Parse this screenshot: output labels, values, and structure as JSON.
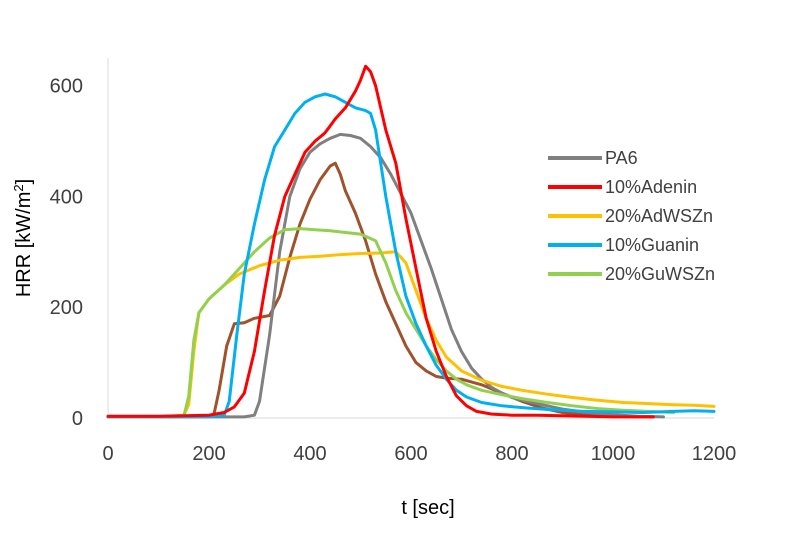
{
  "chart_data": {
    "type": "line",
    "title": "",
    "xlabel": "t [sec]",
    "ylabel_parts": {
      "main": "HRR [kW/m",
      "sup": "2",
      "end": "]"
    },
    "xlim": [
      0,
      1200
    ],
    "ylim": [
      0,
      650
    ],
    "x_ticks": [
      "0",
      "200",
      "400",
      "600",
      "800",
      "1000",
      "1200"
    ],
    "y_ticks": [
      "0",
      "200",
      "400",
      "600"
    ],
    "legend_position": "right",
    "grid": false,
    "series": [
      {
        "name": "PA6",
        "color": "#808080",
        "points": [
          [
            0,
            2
          ],
          [
            100,
            2
          ],
          [
            200,
            2
          ],
          [
            270,
            2
          ],
          [
            290,
            5
          ],
          [
            300,
            30
          ],
          [
            320,
            150
          ],
          [
            340,
            300
          ],
          [
            360,
            400
          ],
          [
            380,
            450
          ],
          [
            400,
            480
          ],
          [
            420,
            495
          ],
          [
            440,
            505
          ],
          [
            460,
            512
          ],
          [
            480,
            510
          ],
          [
            500,
            505
          ],
          [
            520,
            490
          ],
          [
            540,
            470
          ],
          [
            560,
            440
          ],
          [
            580,
            405
          ],
          [
            600,
            370
          ],
          [
            620,
            320
          ],
          [
            640,
            270
          ],
          [
            660,
            215
          ],
          [
            680,
            160
          ],
          [
            700,
            120
          ],
          [
            720,
            90
          ],
          [
            740,
            70
          ],
          [
            760,
            55
          ],
          [
            780,
            45
          ],
          [
            800,
            37
          ],
          [
            830,
            30
          ],
          [
            870,
            22
          ],
          [
            900,
            16
          ],
          [
            950,
            10
          ],
          [
            1000,
            6
          ],
          [
            1050,
            3
          ],
          [
            1100,
            2
          ]
        ]
      },
      {
        "name": "10%Adenin",
        "color": "#ff0000",
        "points": [
          [
            0,
            3
          ],
          [
            100,
            3
          ],
          [
            200,
            5
          ],
          [
            230,
            10
          ],
          [
            250,
            20
          ],
          [
            270,
            45
          ],
          [
            290,
            120
          ],
          [
            310,
            230
          ],
          [
            330,
            330
          ],
          [
            350,
            400
          ],
          [
            370,
            440
          ],
          [
            390,
            480
          ],
          [
            410,
            500
          ],
          [
            430,
            515
          ],
          [
            450,
            540
          ],
          [
            470,
            560
          ],
          [
            490,
            590
          ],
          [
            500,
            610
          ],
          [
            510,
            635
          ],
          [
            520,
            625
          ],
          [
            530,
            600
          ],
          [
            550,
            520
          ],
          [
            570,
            460
          ],
          [
            590,
            360
          ],
          [
            610,
            270
          ],
          [
            630,
            180
          ],
          [
            650,
            120
          ],
          [
            670,
            75
          ],
          [
            690,
            40
          ],
          [
            710,
            22
          ],
          [
            730,
            12
          ],
          [
            760,
            7
          ],
          [
            800,
            5
          ],
          [
            850,
            5
          ],
          [
            900,
            4
          ],
          [
            950,
            3
          ],
          [
            1000,
            2
          ],
          [
            1080,
            2
          ]
        ]
      },
      {
        "name": "20%AdWSZn",
        "color": "#ffc000",
        "points": [
          [
            0,
            2
          ],
          [
            100,
            2
          ],
          [
            150,
            5
          ],
          [
            160,
            25
          ],
          [
            170,
            120
          ],
          [
            180,
            190
          ],
          [
            200,
            215
          ],
          [
            230,
            240
          ],
          [
            260,
            260
          ],
          [
            300,
            275
          ],
          [
            340,
            285
          ],
          [
            380,
            290
          ],
          [
            420,
            292
          ],
          [
            460,
            295
          ],
          [
            500,
            297
          ],
          [
            540,
            298
          ],
          [
            570,
            300
          ],
          [
            590,
            280
          ],
          [
            610,
            230
          ],
          [
            630,
            180
          ],
          [
            650,
            140
          ],
          [
            670,
            110
          ],
          [
            700,
            85
          ],
          [
            740,
            68
          ],
          [
            780,
            57
          ],
          [
            820,
            50
          ],
          [
            870,
            43
          ],
          [
            920,
            37
          ],
          [
            970,
            32
          ],
          [
            1020,
            28
          ],
          [
            1070,
            26
          ],
          [
            1120,
            24
          ],
          [
            1160,
            23
          ],
          [
            1200,
            21
          ]
        ]
      },
      {
        "name": "10%Guanin",
        "color": "#00b0f0",
        "points": [
          [
            0,
            2
          ],
          [
            100,
            2
          ],
          [
            200,
            2
          ],
          [
            230,
            5
          ],
          [
            240,
            30
          ],
          [
            255,
            150
          ],
          [
            270,
            260
          ],
          [
            290,
            350
          ],
          [
            310,
            430
          ],
          [
            330,
            490
          ],
          [
            350,
            520
          ],
          [
            370,
            550
          ],
          [
            390,
            570
          ],
          [
            410,
            580
          ],
          [
            430,
            585
          ],
          [
            450,
            580
          ],
          [
            470,
            570
          ],
          [
            490,
            560
          ],
          [
            510,
            555
          ],
          [
            520,
            550
          ],
          [
            530,
            520
          ],
          [
            550,
            400
          ],
          [
            570,
            300
          ],
          [
            590,
            220
          ],
          [
            610,
            170
          ],
          [
            630,
            130
          ],
          [
            650,
            95
          ],
          [
            670,
            70
          ],
          [
            690,
            50
          ],
          [
            710,
            38
          ],
          [
            740,
            28
          ],
          [
            780,
            22
          ],
          [
            830,
            18
          ],
          [
            880,
            15
          ],
          [
            940,
            12
          ],
          [
            1000,
            11
          ],
          [
            1060,
            10
          ],
          [
            1120,
            12
          ],
          [
            1160,
            13
          ],
          [
            1200,
            12
          ]
        ]
      },
      {
        "name": "20%GuWSZn",
        "color": "#92d050",
        "points": [
          [
            0,
            2
          ],
          [
            100,
            2
          ],
          [
            150,
            3
          ],
          [
            160,
            40
          ],
          [
            170,
            140
          ],
          [
            180,
            190
          ],
          [
            200,
            215
          ],
          [
            230,
            240
          ],
          [
            260,
            270
          ],
          [
            290,
            300
          ],
          [
            320,
            325
          ],
          [
            350,
            340
          ],
          [
            380,
            342
          ],
          [
            410,
            340
          ],
          [
            440,
            338
          ],
          [
            470,
            335
          ],
          [
            500,
            332
          ],
          [
            530,
            320
          ],
          [
            550,
            280
          ],
          [
            570,
            230
          ],
          [
            590,
            190
          ],
          [
            610,
            160
          ],
          [
            630,
            130
          ],
          [
            650,
            105
          ],
          [
            670,
            85
          ],
          [
            690,
            70
          ],
          [
            710,
            60
          ],
          [
            740,
            50
          ],
          [
            780,
            42
          ],
          [
            820,
            35
          ],
          [
            870,
            28
          ],
          [
            920,
            22
          ],
          [
            970,
            17
          ],
          [
            1020,
            14
          ],
          [
            1070,
            12
          ],
          [
            1120,
            10
          ]
        ]
      },
      {
        "name": "",
        "color": "#a0522d",
        "points": [
          [
            0,
            2
          ],
          [
            100,
            2
          ],
          [
            200,
            3
          ],
          [
            210,
            8
          ],
          [
            220,
            50
          ],
          [
            235,
            130
          ],
          [
            250,
            170
          ],
          [
            270,
            172
          ],
          [
            290,
            180
          ],
          [
            320,
            185
          ],
          [
            340,
            220
          ],
          [
            360,
            290
          ],
          [
            380,
            350
          ],
          [
            400,
            395
          ],
          [
            420,
            430
          ],
          [
            440,
            455
          ],
          [
            450,
            460
          ],
          [
            460,
            440
          ],
          [
            470,
            410
          ],
          [
            490,
            370
          ],
          [
            510,
            320
          ],
          [
            530,
            260
          ],
          [
            550,
            210
          ],
          [
            570,
            170
          ],
          [
            590,
            130
          ],
          [
            610,
            100
          ],
          [
            630,
            85
          ],
          [
            650,
            75
          ],
          [
            670,
            72
          ],
          [
            700,
            70
          ],
          [
            740,
            60
          ],
          [
            780,
            45
          ],
          [
            820,
            30
          ],
          [
            860,
            18
          ],
          [
            900,
            10
          ],
          [
            950,
            5
          ],
          [
            1000,
            3
          ],
          [
            1050,
            2
          ],
          [
            1080,
            2
          ]
        ]
      }
    ]
  }
}
